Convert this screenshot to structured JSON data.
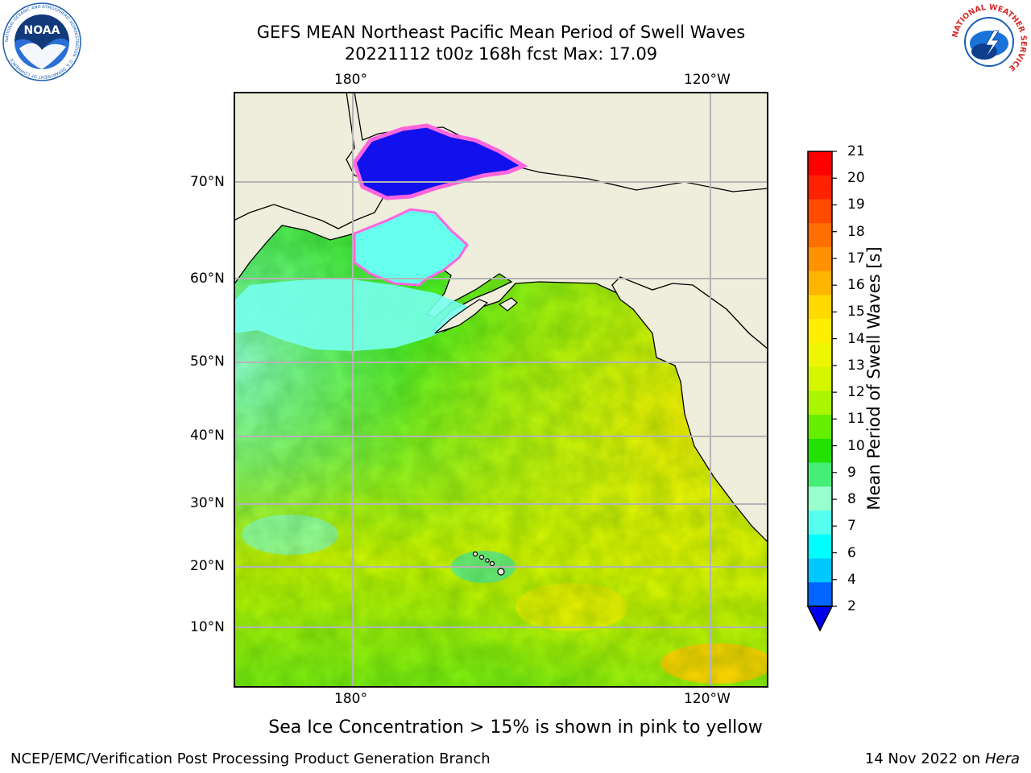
{
  "title": {
    "line1": "GEFS MEAN Northeast Pacific Mean Period of Swell Waves",
    "line2": "20221112 t00z 168h fcst   Max: 17.09"
  },
  "logos": {
    "noaa": {
      "center_text": "NOAA",
      "ring_text": "NATIONAL OCEANIC AND ATMOSPHERIC ADMINISTRATION · U.S. DEPARTMENT OF COMMERCE",
      "color": "#1a5fb4"
    },
    "nws": {
      "ring_text": "NATIONAL WEATHER SERVICE",
      "color": "#d62828"
    }
  },
  "map": {
    "top_lon_labels": [
      "180°",
      "120°W"
    ],
    "bottom_lon_labels": [
      "180°",
      "120°W"
    ],
    "lat_labels": [
      "70°N",
      "60°N",
      "50°N",
      "40°N",
      "30°N",
      "20°N",
      "10°N"
    ],
    "land_color": "#efeddc",
    "ice_colors": [
      "#ff44cc",
      "#ff99bb",
      "#ffcc66"
    ]
  },
  "colorbar": {
    "label": "Mean Period of Swell Waves [s]",
    "ticks": [
      "21",
      "20",
      "19",
      "18",
      "17",
      "16",
      "15",
      "14",
      "13",
      "12",
      "11",
      "10",
      "9",
      "8",
      "7",
      "6",
      "4",
      "2"
    ],
    "colors_top_to_bottom": [
      "#ff0000",
      "#ff2200",
      "#ff4a00",
      "#ff6f00",
      "#ff9200",
      "#ffb400",
      "#ffd900",
      "#ffee00",
      "#eef500",
      "#d4f700",
      "#aaf500",
      "#66ee00",
      "#22e000",
      "#44ee77",
      "#99ffcc",
      "#55ffee",
      "#00ffff",
      "#00c8ff",
      "#0066ff"
    ],
    "extend_color": "#0000ee"
  },
  "subtitle": "Sea Ice Concentration > 15% is shown in pink to yellow",
  "footer": {
    "left": "NCEP/EMC/Verification Post Processing Product Generation Branch",
    "right_date": "14 Nov 2022 on",
    "right_host": "Hera"
  }
}
